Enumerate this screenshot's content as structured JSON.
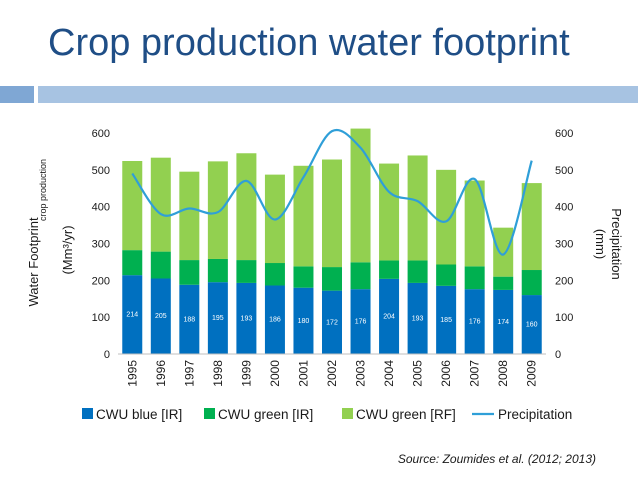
{
  "slide": {
    "title": "Crop production water footprint",
    "source": "Source: Zoumides et al. (2012; 2013)"
  },
  "colors": {
    "cwu_blue": "#0070c0",
    "cwu_green_ir": "#00b050",
    "cwu_green_rf": "#92d050",
    "precip": "#2f9fd8",
    "title": "#1f4e86",
    "band_left": "#7fa7d4",
    "band_right": "#a7c3e2"
  },
  "chart_data": {
    "type": "bar",
    "stacked": true,
    "categories": [
      "1995",
      "1996",
      "1997",
      "1998",
      "1999",
      "2000",
      "2001",
      "2002",
      "2003",
      "2004",
      "2005",
      "2006",
      "2007",
      "2008",
      "2009"
    ],
    "series": [
      {
        "name": "CWU blue [IR]",
        "values": [
          214,
          205,
          188,
          195,
          193,
          186,
          180,
          172,
          176,
          204,
          193,
          185,
          176,
          174,
          160
        ],
        "labels": [
          "214",
          "205",
          "188",
          "195",
          "193",
          "186",
          "180",
          "172",
          "176",
          "204",
          "193",
          "185",
          "176",
          "174",
          "160"
        ]
      },
      {
        "name": "CWU green [IR]",
        "values": [
          68,
          73,
          67,
          63,
          62,
          61,
          58,
          64,
          73,
          50,
          61,
          58,
          62,
          36,
          68
        ]
      },
      {
        "name": "CWU green [RF]",
        "values": [
          242,
          255,
          240,
          265,
          290,
          240,
          273,
          292,
          363,
          263,
          285,
          257,
          233,
          133,
          236
        ]
      }
    ],
    "line_series": {
      "name": "Precipitation",
      "axis": "right",
      "values": [
        490,
        380,
        395,
        385,
        470,
        365,
        480,
        605,
        560,
        440,
        415,
        360,
        475,
        270,
        525
      ]
    },
    "ylabel_left_main": "Water Footprint",
    "ylabel_left_sub": "crop production",
    "ylabel_left_unit": "(Mm³/yr)",
    "ylabel_right_main": "Precipitation",
    "ylabel_right_unit": "(mm)",
    "ylim_left": [
      0,
      600
    ],
    "ylim_right": [
      0,
      600
    ],
    "yticks_left": [
      "0",
      "100",
      "200",
      "300",
      "400",
      "500",
      "600"
    ],
    "yticks_right": [
      "0",
      "100",
      "200",
      "300",
      "400",
      "500",
      "600"
    ],
    "legend_position": "bottom",
    "grid": false
  }
}
